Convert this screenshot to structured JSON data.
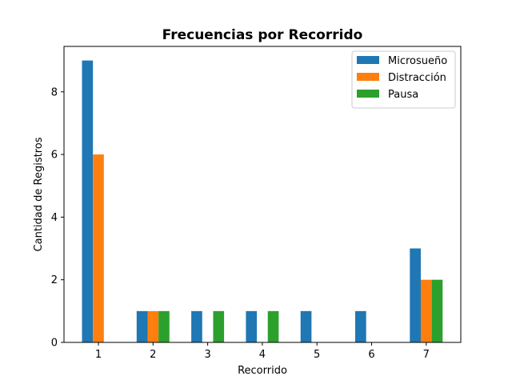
{
  "chart_data": {
    "type": "bar",
    "title": "Frecuencias por Recorrido",
    "xlabel": "Recorrido",
    "ylabel": "Cantidad de Registros",
    "categories": [
      "1",
      "2",
      "3",
      "4",
      "5",
      "6",
      "7"
    ],
    "series": [
      {
        "name": "Microsueño",
        "color": "#1f77b4",
        "values": [
          9,
          1,
          1,
          1,
          1,
          1,
          3
        ]
      },
      {
        "name": "Distracción",
        "color": "#ff7f0e",
        "values": [
          6,
          1,
          0,
          0,
          0,
          0,
          2
        ]
      },
      {
        "name": "Pausa",
        "color": "#2ca02c",
        "values": [
          0,
          1,
          1,
          1,
          0,
          0,
          2
        ]
      }
    ],
    "ylim": [
      0,
      9.45
    ],
    "yticks": [
      0,
      2,
      4,
      6,
      8
    ],
    "grid": false,
    "legend": "top-right"
  }
}
